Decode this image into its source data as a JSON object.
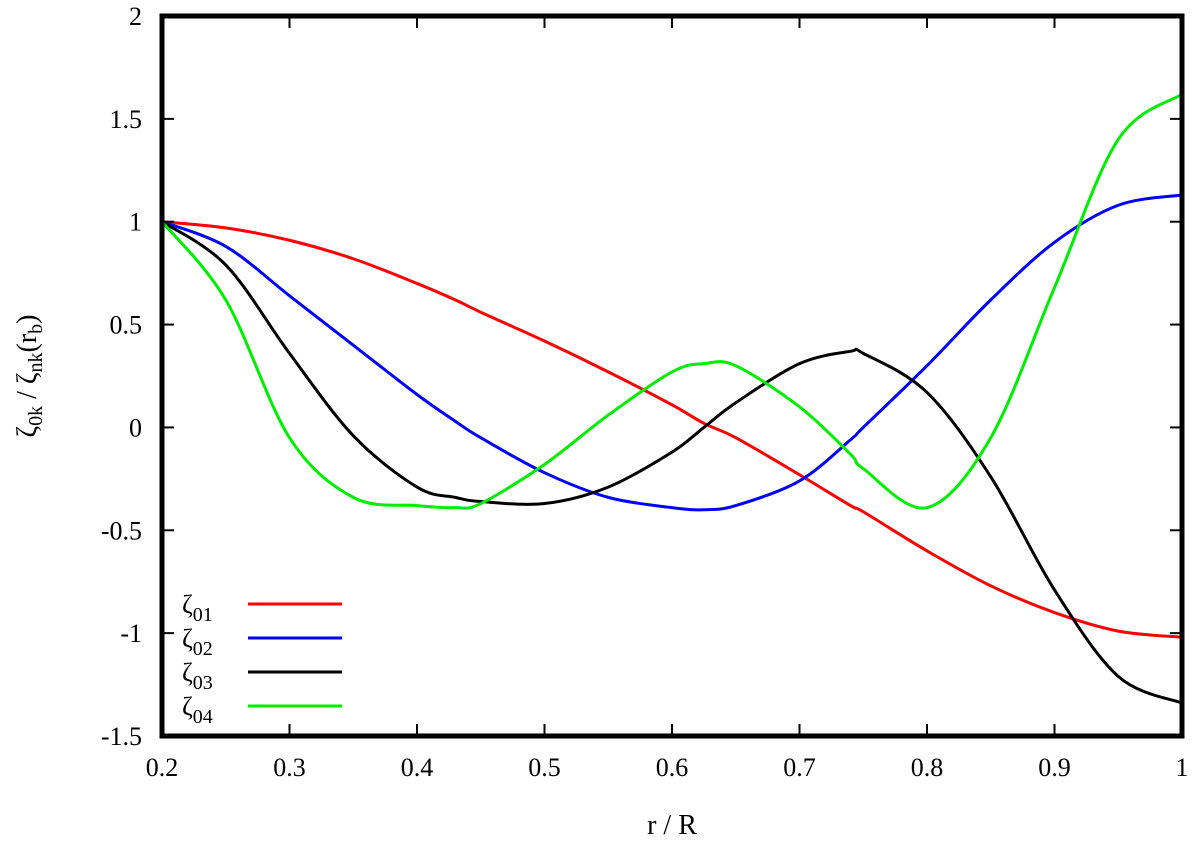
{
  "chart_data": {
    "type": "line",
    "title": "",
    "xlabel": "r / R",
    "ylabel": {
      "part1": "ζ",
      "part1_sub": "0k",
      "part2": " / ζ",
      "part2_sub": "nk",
      "part3": "(r",
      "part3_sub": "b",
      "part4": ")"
    },
    "xlim": [
      0.2,
      1.0
    ],
    "ylim": [
      -1.5,
      2.0
    ],
    "xticks": [
      0.2,
      0.3,
      0.4,
      0.5,
      0.6,
      0.7,
      0.8,
      0.9,
      1.0
    ],
    "xtick_labels": [
      "0.2",
      "0.3",
      "0.4",
      "0.5",
      "0.6",
      "0.7",
      "0.8",
      "0.9",
      "1"
    ],
    "yticks": [
      -1.5,
      -1.0,
      -0.5,
      0.0,
      0.5,
      1.0,
      1.5,
      2.0
    ],
    "ytick_labels": [
      "-1.5",
      "-1",
      "-0.5",
      "0",
      "0.5",
      "1",
      "1.5",
      "2"
    ],
    "grid": false,
    "legend_position": "bottom-left",
    "x": [
      0.2,
      0.25,
      0.3,
      0.35,
      0.4,
      0.43,
      0.45,
      0.5,
      0.55,
      0.6,
      0.625,
      0.65,
      0.7,
      0.74,
      0.75,
      0.8,
      0.85,
      0.9,
      0.95,
      1.0
    ],
    "series": [
      {
        "name": "ζ",
        "name_sub": "01",
        "color": "#ff0000",
        "values": [
          1.0,
          0.97,
          0.91,
          0.82,
          0.7,
          0.62,
          0.56,
          0.42,
          0.27,
          0.11,
          0.02,
          -0.05,
          -0.23,
          -0.38,
          -0.41,
          -0.6,
          -0.77,
          -0.9,
          -0.99,
          -1.02
        ]
      },
      {
        "name": "ζ",
        "name_sub": "02",
        "color": "#0000ff",
        "values": [
          1.0,
          0.88,
          0.64,
          0.4,
          0.16,
          0.03,
          -0.05,
          -0.22,
          -0.34,
          -0.39,
          -0.4,
          -0.38,
          -0.26,
          -0.06,
          0.0,
          0.3,
          0.62,
          0.9,
          1.08,
          1.13
        ]
      },
      {
        "name": "ζ",
        "name_sub": "03",
        "color": "#000000",
        "values": [
          1.0,
          0.79,
          0.36,
          -0.04,
          -0.29,
          -0.34,
          -0.36,
          -0.37,
          -0.29,
          -0.12,
          0.0,
          0.12,
          0.31,
          0.37,
          0.36,
          0.17,
          -0.24,
          -0.79,
          -1.21,
          -1.34
        ]
      },
      {
        "name": "ζ",
        "name_sub": "04",
        "color": "#00ee00",
        "values": [
          1.0,
          0.62,
          -0.05,
          -0.34,
          -0.38,
          -0.39,
          -0.37,
          -0.18,
          0.06,
          0.27,
          0.31,
          0.3,
          0.1,
          -0.13,
          -0.2,
          -0.39,
          -0.05,
          0.68,
          1.4,
          1.62
        ]
      }
    ]
  }
}
